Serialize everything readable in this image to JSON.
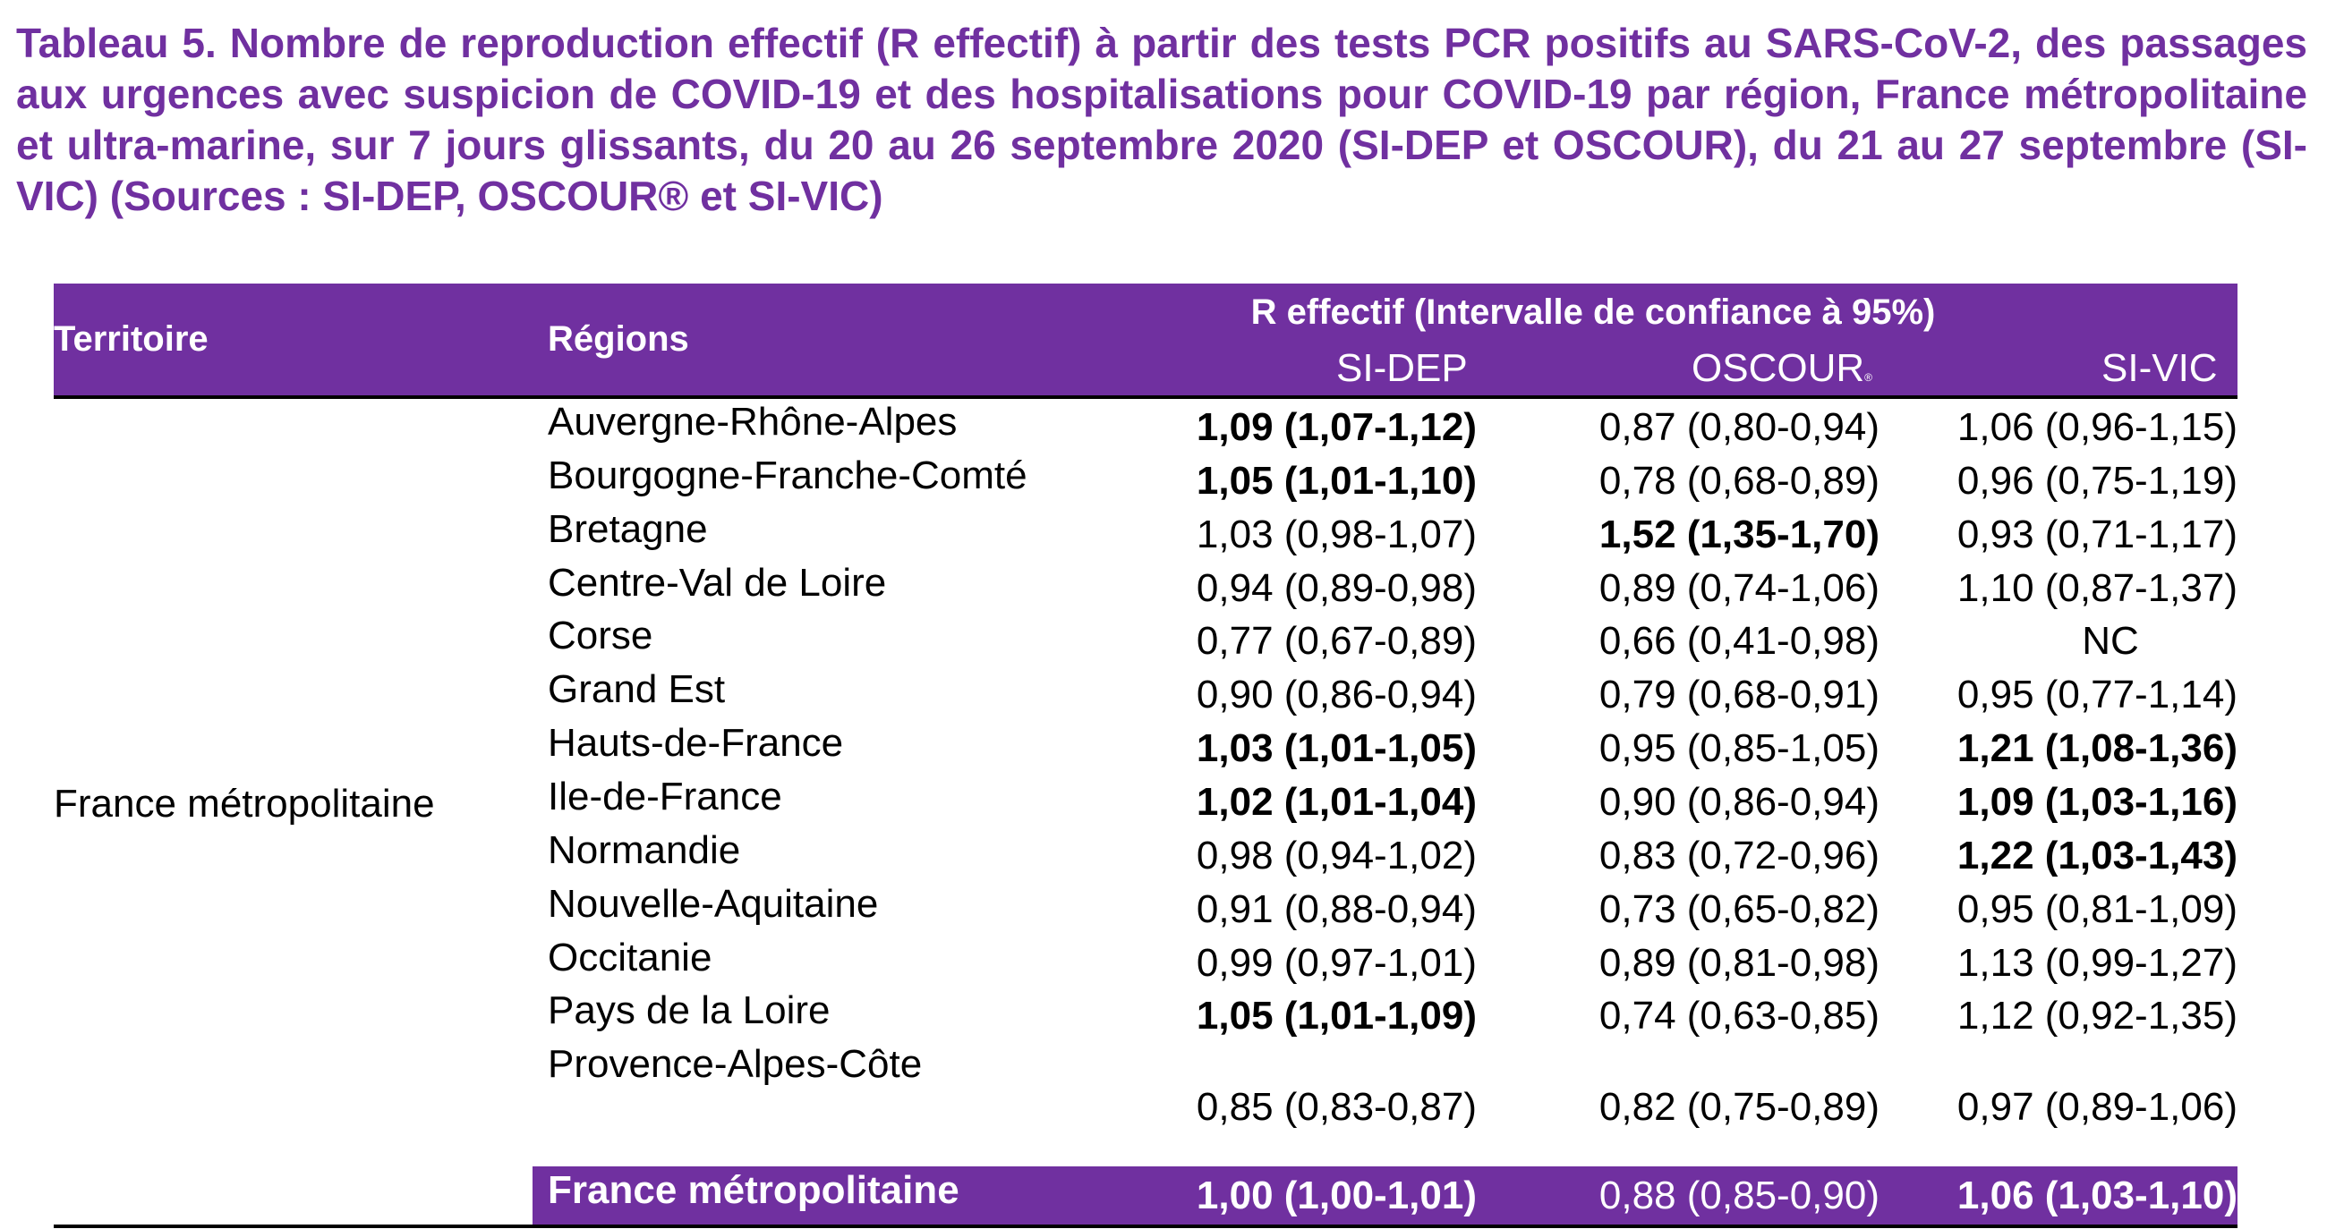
{
  "caption": "Tableau 5. Nombre de reproduction effectif (R effectif) à partir des tests PCR positifs au SARS-CoV-2, des passages aux urgences avec suspicion de COVID-19 et des hospitalisations pour COVID-19 par région, France métropolitaine et ultra-marine, sur 7 jours glissants, du 20 au 26 septembre 2020 (SI-DEP et OSCOUR), du 21 au 27 septembre (SI-VIC) (Sources : SI-DEP, OSCOUR® et SI-VIC)",
  "colors": {
    "accent": "#7030a0",
    "rule": "#000000"
  },
  "header": {
    "territory": "Territoire",
    "regions": "Régions",
    "r_title": "R effectif (Intervalle de confiance à 95%)",
    "sidep": "SI-DEP",
    "oscour": "OSCOUR",
    "oscour_mark": "®",
    "sivic": "SI-VIC"
  },
  "territory": "France métropolitaine",
  "rows": [
    {
      "region": "Auvergne-Rhône-Alpes",
      "sidep": "1,09 (1,07-1,12)",
      "sidep_bold": true,
      "oscour": "0,87 (0,80-0,94)",
      "oscour_bold": false,
      "sivic": "1,06 (0,96-1,15)",
      "sivic_bold": false
    },
    {
      "region": "Bourgogne-Franche-Comté",
      "sidep": "1,05 (1,01-1,10)",
      "sidep_bold": true,
      "oscour": "0,78 (0,68-0,89)",
      "oscour_bold": false,
      "sivic": "0,96 (0,75-1,19)",
      "sivic_bold": false
    },
    {
      "region": "Bretagne",
      "sidep": "1,03 (0,98-1,07)",
      "sidep_bold": false,
      "oscour": "1,52 (1,35-1,70)",
      "oscour_bold": true,
      "sivic": "0,93 (0,71-1,17)",
      "sivic_bold": false
    },
    {
      "region": "Centre-Val de Loire",
      "sidep": "0,94 (0,89-0,98)",
      "sidep_bold": false,
      "oscour": "0,89 (0,74-1,06)",
      "oscour_bold": false,
      "sivic": "1,10 (0,87-1,37)",
      "sivic_bold": false
    },
    {
      "region": "Corse",
      "sidep": "0,77 (0,67-0,89)",
      "sidep_bold": false,
      "oscour": "0,66 (0,41-0,98)",
      "oscour_bold": false,
      "sivic": "NC",
      "sivic_bold": false
    },
    {
      "region": "Grand Est",
      "sidep": "0,90 (0,86-0,94)",
      "sidep_bold": false,
      "oscour": "0,79 (0,68-0,91)",
      "oscour_bold": false,
      "sivic": "0,95 (0,77-1,14)",
      "sivic_bold": false
    },
    {
      "region": "Hauts-de-France",
      "sidep": "1,03 (1,01-1,05)",
      "sidep_bold": true,
      "oscour": "0,95 (0,85-1,05)",
      "oscour_bold": false,
      "sivic": "1,21 (1,08-1,36)",
      "sivic_bold": true
    },
    {
      "region": "Ile-de-France",
      "sidep": "1,02 (1,01-1,04)",
      "sidep_bold": true,
      "oscour": "0,90 (0,86-0,94)",
      "oscour_bold": false,
      "sivic": "1,09 (1,03-1,16)",
      "sivic_bold": true
    },
    {
      "region": "Normandie",
      "sidep": "0,98 (0,94-1,02)",
      "sidep_bold": false,
      "oscour": "0,83 (0,72-0,96)",
      "oscour_bold": false,
      "sivic": "1,22 (1,03-1,43)",
      "sivic_bold": true
    },
    {
      "region": "Nouvelle-Aquitaine",
      "sidep": "0,91 (0,88-0,94)",
      "sidep_bold": false,
      "oscour": "0,73 (0,65-0,82)",
      "oscour_bold": false,
      "sivic": "0,95 (0,81-1,09)",
      "sivic_bold": false
    },
    {
      "region": "Occitanie",
      "sidep": "0,99 (0,97-1,01)",
      "sidep_bold": false,
      "oscour": "0,89 (0,81-0,98)",
      "oscour_bold": false,
      "sivic": "1,13 (0,99-1,27)",
      "sivic_bold": false
    },
    {
      "region": "Pays de la Loire",
      "sidep": "1,05 (1,01-1,09)",
      "sidep_bold": true,
      "oscour": "0,74 (0,63-0,85)",
      "oscour_bold": false,
      "sivic": "1,12 (0,92-1,35)",
      "sivic_bold": false
    },
    {
      "region": "Provence-Alpes-Côte",
      "sidep": "0,85 (0,83-0,87)",
      "sidep_bold": false,
      "oscour": "0,82 (0,75-0,89)",
      "oscour_bold": false,
      "sivic": "0,97 (0,89-1,06)",
      "sivic_bold": false
    }
  ],
  "total": {
    "region": "France métropolitaine",
    "sidep": "1,00 (1,00-1,01)",
    "oscour": "0,88 (0,85-0,90)",
    "sivic": "1,06 (1,03-1,10)"
  }
}
